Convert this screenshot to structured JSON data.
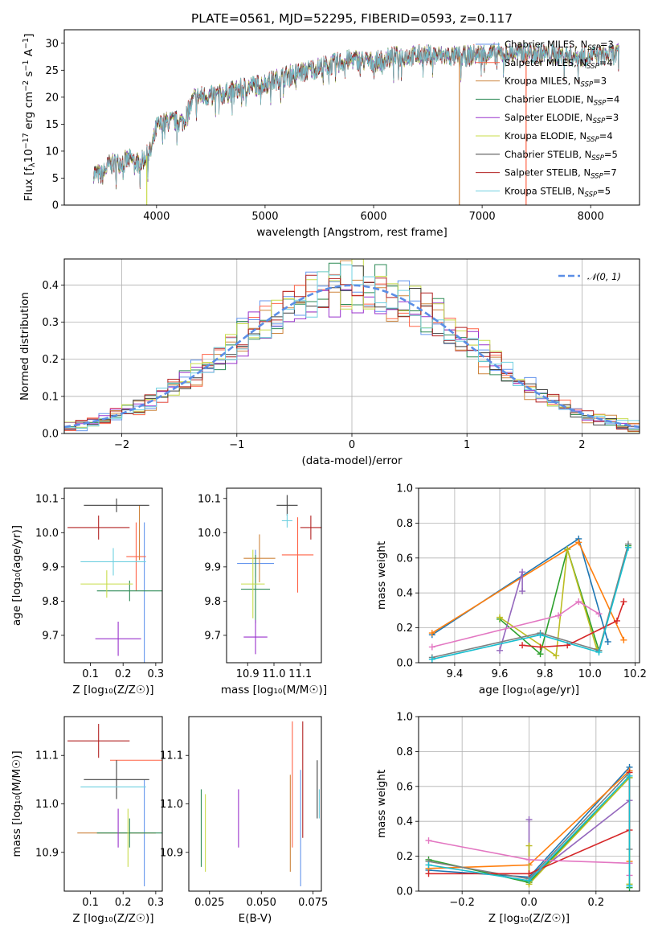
{
  "figure": {
    "title": "PLATE=0561, MJD=52295, FIBERID=0593, z=0.117"
  },
  "colors": {
    "c_MILES": "#6495ed",
    "s_MILES": "#ff6347",
    "k_MILES": "#cd853f",
    "c_ELODIE": "#2e8b57",
    "s_ELODIE": "#9932cc",
    "k_ELODIE": "#c8dc4a",
    "c_STELIB": "#404040",
    "s_STELIB": "#b22222",
    "k_STELIB": "#6fd0e0",
    "p1": "#1f77b4",
    "p2": "#ff7f0e",
    "p3": "#2ca02c",
    "p4": "#d62728",
    "p5": "#9467bd",
    "p6": "#8c564b",
    "p7": "#e377c2",
    "p8": "#7f7f7f",
    "p9": "#bcbd22",
    "p10": "#17becf"
  },
  "chart_data": [
    {
      "id": "spectrum",
      "type": "line",
      "title": "PLATE=0561, MJD=52295, FIBERID=0593, z=0.117",
      "xlabel": "wavelength [Angstrom, rest frame]",
      "ylabel_parts": [
        "Flux [f",
        "λ",
        "10",
        "−17",
        " erg cm",
        "−2",
        " s",
        "−1",
        " A",
        "−1",
        "]"
      ],
      "xlim": [
        3150,
        8450
      ],
      "ylim": [
        0,
        32.5
      ],
      "xticks": [
        4000,
        5000,
        6000,
        7000,
        8000
      ],
      "yticks": [
        0,
        5,
        10,
        15,
        20,
        25,
        30
      ],
      "x_range": [
        3420,
        8260
      ],
      "continuum": [
        [
          3420,
          6.0
        ],
        [
          3500,
          5.5
        ],
        [
          3560,
          7.5
        ],
        [
          3650,
          7.8
        ],
        [
          3750,
          8.5
        ],
        [
          3850,
          7.8
        ],
        [
          3950,
          10.0
        ],
        [
          4000,
          14.5
        ],
        [
          4100,
          15.5
        ],
        [
          4250,
          15.5
        ],
        [
          4350,
          20.0
        ],
        [
          4600,
          20.5
        ],
        [
          4850,
          22.0
        ],
        [
          5000,
          22.5
        ],
        [
          5200,
          24.0
        ],
        [
          5500,
          25.5
        ],
        [
          5800,
          27.0
        ],
        [
          6000,
          26.5
        ],
        [
          6200,
          27.5
        ],
        [
          6500,
          27.8
        ],
        [
          6800,
          27.5
        ],
        [
          7000,
          28.0
        ],
        [
          7300,
          28.2
        ],
        [
          7600,
          28.0
        ],
        [
          7900,
          27.5
        ],
        [
          8260,
          28.0
        ]
      ],
      "drops": [
        [
          3910,
          "k_ELODIE"
        ],
        [
          6790,
          "k_MILES"
        ],
        [
          7405,
          "s_MILES"
        ]
      ],
      "series": [
        {
          "key": "c_MILES",
          "label": "Chabrier MILES",
          "nssp": "3"
        },
        {
          "key": "s_MILES",
          "label": "Salpeter MILES",
          "nssp": "4"
        },
        {
          "key": "k_MILES",
          "label": "Kroupa MILES",
          "nssp": "3"
        },
        {
          "key": "c_ELODIE",
          "label": "Chabrier ELODIE",
          "nssp": "4"
        },
        {
          "key": "s_ELODIE",
          "label": "Salpeter ELODIE",
          "nssp": "3"
        },
        {
          "key": "k_ELODIE",
          "label": "Kroupa ELODIE",
          "nssp": "4"
        },
        {
          "key": "c_STELIB",
          "label": "Chabrier STELIB",
          "nssp": "5"
        },
        {
          "key": "s_STELIB",
          "label": "Salpeter STELIB",
          "nssp": "7"
        },
        {
          "key": "k_STELIB",
          "label": "Kroupa STELIB",
          "nssp": "5"
        }
      ]
    },
    {
      "id": "residuals",
      "type": "line",
      "xlabel": "(data-model)/error",
      "ylabel": "Normed distribution",
      "xlim": [
        -2.5,
        2.5
      ],
      "ylim": [
        0,
        0.47
      ],
      "xticks": [
        -2,
        -1,
        0,
        1,
        2
      ],
      "yticks": [
        0.0,
        0.1,
        0.2,
        0.3,
        0.4
      ],
      "grid": true,
      "legend": "𝒩(0, 1)",
      "legend_position": "upper right",
      "bin_width": 0.1
    },
    {
      "id": "age_vs_Z",
      "type": "scatter",
      "xlabel": "Z [log₁₀(Z/Z☉)]",
      "ylabel": "age  [log₁₀(age/yr)]",
      "xlim": [
        0.02,
        0.32
      ],
      "ylim": [
        9.62,
        10.13
      ],
      "xticks": [
        0.1,
        0.2,
        0.3
      ],
      "yticks": [
        9.7,
        9.8,
        9.9,
        10.0,
        10.1
      ],
      "points": [
        {
          "key": "c_MILES",
          "x": 0.265,
          "y": 9.78,
          "xe": 0.0,
          "ye": 0.25
        },
        {
          "key": "s_MILES",
          "x": 0.24,
          "y": 9.93,
          "xe": 0.03,
          "ye": 0.1
        },
        {
          "key": "k_MILES",
          "x": 0.25,
          "y": 10.0,
          "xe": 0.0,
          "ye": 0.08
        },
        {
          "key": "c_ELODIE",
          "x": 0.22,
          "y": 9.83,
          "xe": 0.1,
          "ye": 0.03
        },
        {
          "key": "s_ELODIE",
          "x": 0.185,
          "y": 9.69,
          "xe": 0.07,
          "ye": 0.05
        },
        {
          "key": "k_ELODIE",
          "x": 0.15,
          "y": 9.85,
          "xe": 0.08,
          "ye": 0.04
        },
        {
          "key": "c_STELIB",
          "x": 0.18,
          "y": 10.08,
          "xe": 0.1,
          "ye": 0.02
        },
        {
          "key": "s_STELIB",
          "x": 0.125,
          "y": 10.015,
          "xe": 0.095,
          "ye": 0.035
        },
        {
          "key": "k_STELIB",
          "x": 0.17,
          "y": 9.915,
          "xe": 0.1,
          "ye": 0.04
        }
      ]
    },
    {
      "id": "age_vs_mass",
      "type": "scatter",
      "xlabel": "mass [log₁₀(M/M☉)]",
      "ylabel": "",
      "xlim": [
        10.82,
        11.18
      ],
      "ylim": [
        9.62,
        10.13
      ],
      "xticks": [
        10.9,
        11.0,
        11.1
      ],
      "yticks": [
        9.7,
        9.8,
        9.9,
        10.0,
        10.1
      ],
      "points": [
        {
          "key": "c_MILES",
          "x": 10.93,
          "y": 9.91,
          "xe": 0.07,
          "ye": 0.04
        },
        {
          "key": "s_MILES",
          "x": 11.09,
          "y": 9.935,
          "xe": 0.06,
          "ye": 0.11
        },
        {
          "key": "k_MILES",
          "x": 10.945,
          "y": 9.925,
          "xe": 0.06,
          "ye": 0.07
        },
        {
          "key": "c_ELODIE",
          "x": 10.93,
          "y": 9.835,
          "xe": 0.055,
          "ye": 0.1
        },
        {
          "key": "s_ELODIE",
          "x": 10.93,
          "y": 9.695,
          "xe": 0.045,
          "ye": 0.05
        },
        {
          "key": "k_ELODIE",
          "x": 10.92,
          "y": 9.85,
          "xe": 0.045,
          "ye": 0.1
        },
        {
          "key": "c_STELIB",
          "x": 11.05,
          "y": 10.08,
          "xe": 0.04,
          "ye": 0.03
        },
        {
          "key": "s_STELIB",
          "x": 11.14,
          "y": 10.015,
          "xe": 0.04,
          "ye": 0.035
        },
        {
          "key": "k_STELIB",
          "x": 11.05,
          "y": 10.035,
          "xe": 0.02,
          "ye": 0.02
        }
      ]
    },
    {
      "id": "weight_vs_age",
      "type": "line",
      "xlabel": "age  [log₁₀(age/yr)]",
      "ylabel": "mass weight",
      "xlim": [
        9.24,
        10.22
      ],
      "ylim": [
        0,
        1
      ],
      "xticks": [
        9.4,
        9.6,
        9.8,
        10.0,
        10.2
      ],
      "yticks": [
        0.0,
        0.2,
        0.4,
        0.6,
        0.8,
        1.0
      ],
      "grid": true,
      "series": [
        {
          "key": "c_MILES",
          "color": "p1",
          "x": [
            9.3,
            9.95,
            10.08
          ],
          "y": [
            0.16,
            0.71,
            0.12
          ]
        },
        {
          "key": "k_MILES",
          "color": "p2",
          "x": [
            9.3,
            9.95,
            10.15
          ],
          "y": [
            0.17,
            0.69,
            0.13
          ]
        },
        {
          "key": "c_ELODIE",
          "color": "p3",
          "x": [
            9.6,
            9.78,
            9.9,
            10.04,
            10.17
          ],
          "y": [
            0.25,
            0.05,
            0.65,
            0.07,
            0.67
          ]
        },
        {
          "key": "s_ELODIE",
          "color": "p5",
          "x": [
            9.6,
            9.7,
            9.7
          ],
          "y": [
            0.07,
            0.52,
            0.41
          ]
        },
        {
          "key": "k_ELODIE",
          "color": "p9",
          "x": [
            9.6,
            9.85,
            9.9,
            10.03
          ],
          "y": [
            0.26,
            0.04,
            0.65,
            0.08
          ]
        },
        {
          "key": "c_STELIB",
          "color": "p8",
          "x": [
            9.3,
            9.78,
            10.04,
            10.17
          ],
          "y": [
            0.03,
            0.17,
            0.07,
            0.68
          ]
        },
        {
          "key": "s_STELIB",
          "color": "p4",
          "x": [
            9.7,
            9.78,
            9.9,
            10.12,
            10.15
          ],
          "y": [
            0.1,
            0.09,
            0.1,
            0.24,
            0.35
          ]
        },
        {
          "key": "s_MILES",
          "color": "p7",
          "x": [
            9.3,
            9.86,
            9.95,
            10.04
          ],
          "y": [
            0.09,
            0.27,
            0.35,
            0.28
          ]
        },
        {
          "key": "k_STELIB",
          "color": "p10",
          "x": [
            9.3,
            9.78,
            10.04,
            10.17
          ],
          "y": [
            0.02,
            0.16,
            0.06,
            0.66
          ]
        }
      ]
    },
    {
      "id": "mass_vs_Z",
      "type": "scatter",
      "xlabel": "Z [log₁₀(Z/Z☉)]",
      "ylabel": "mass [log₁₀(M/M☉)]",
      "xlim": [
        0.02,
        0.32
      ],
      "ylim": [
        10.82,
        11.18
      ],
      "xticks": [
        0.1,
        0.2,
        0.3
      ],
      "yticks": [
        10.9,
        11.0,
        11.1
      ],
      "points": [
        {
          "key": "c_MILES",
          "x": 0.265,
          "y": 10.94,
          "xe": 0.0,
          "ye": 0.11
        },
        {
          "key": "s_MILES",
          "x": 0.24,
          "y": 11.09,
          "xe": 0.08,
          "ye": 0.0
        },
        {
          "key": "k_MILES",
          "x": 0.18,
          "y": 10.94,
          "xe": 0.12,
          "ye": 0.0
        },
        {
          "key": "c_ELODIE",
          "x": 0.22,
          "y": 10.94,
          "xe": 0.1,
          "ye": 0.03
        },
        {
          "key": "s_ELODIE",
          "x": 0.185,
          "y": 10.95,
          "xe": 0.0,
          "ye": 0.04
        },
        {
          "key": "k_ELODIE",
          "x": 0.215,
          "y": 10.93,
          "xe": 0.0,
          "ye": 0.06
        },
        {
          "key": "c_STELIB",
          "x": 0.18,
          "y": 11.05,
          "xe": 0.1,
          "ye": 0.04
        },
        {
          "key": "s_STELIB",
          "x": 0.125,
          "y": 11.13,
          "xe": 0.095,
          "ye": 0.035
        },
        {
          "key": "k_STELIB",
          "x": 0.17,
          "y": 11.035,
          "xe": 0.1,
          "ye": 0.0
        }
      ]
    },
    {
      "id": "mass_vs_EBV",
      "type": "scatter",
      "xlabel": "E(B-V)",
      "ylabel": "",
      "xlim": [
        0.015,
        0.079
      ],
      "ylim": [
        10.82,
        11.18
      ],
      "xticks": [
        0.025,
        0.05,
        0.075
      ],
      "yticks": [
        10.9,
        11.0,
        11.1
      ],
      "points": [
        {
          "key": "c_MILES",
          "x": 0.069,
          "y": 10.95,
          "xe": 0.0,
          "ye": 0.12
        },
        {
          "key": "s_MILES",
          "x": 0.065,
          "y": 11.04,
          "xe": 0.0,
          "ye": 0.13
        },
        {
          "key": "k_MILES",
          "x": 0.064,
          "y": 10.96,
          "xe": 0.0,
          "ye": 0.1
        },
        {
          "key": "c_ELODIE",
          "x": 0.021,
          "y": 10.95,
          "xe": 0.0,
          "ye": 0.08
        },
        {
          "key": "s_ELODIE",
          "x": 0.039,
          "y": 10.97,
          "xe": 0.0,
          "ye": 0.06
        },
        {
          "key": "k_ELODIE",
          "x": 0.023,
          "y": 10.94,
          "xe": 0.0,
          "ye": 0.08
        },
        {
          "key": "c_STELIB",
          "x": 0.077,
          "y": 11.03,
          "xe": 0.0,
          "ye": 0.06
        },
        {
          "key": "s_STELIB",
          "x": 0.07,
          "y": 11.05,
          "xe": 0.0,
          "ye": 0.12
        },
        {
          "key": "k_STELIB",
          "x": 0.078,
          "y": 11.0,
          "xe": 0.0,
          "ye": 0.03
        }
      ]
    },
    {
      "id": "weight_vs_Z",
      "type": "line",
      "xlabel": "Z [log₁₀(Z/Z☉)]",
      "ylabel": "mass weight",
      "xlim": [
        -0.33,
        0.33
      ],
      "ylim": [
        0,
        1
      ],
      "xticks": [
        -0.2,
        0.0,
        0.2
      ],
      "yticks": [
        0.0,
        0.2,
        0.4,
        0.6,
        0.8,
        1.0
      ],
      "grid": true,
      "series": [
        {
          "key": "c_MILES",
          "color": "p1",
          "x": [
            -0.3,
            0.0,
            0.3,
            0.3
          ],
          "y": [
            0.12,
            0.08,
            0.71,
            0.16
          ]
        },
        {
          "key": "k_MILES",
          "color": "p2",
          "x": [
            -0.3,
            0.0,
            0.3,
            0.3
          ],
          "y": [
            0.13,
            0.15,
            0.69,
            0.17
          ]
        },
        {
          "key": "c_ELODIE",
          "color": "p3",
          "x": [
            -0.3,
            0.0,
            0.3,
            0.3
          ],
          "y": [
            0.18,
            0.05,
            0.65,
            0.02
          ]
        },
        {
          "key": "s_ELODIE",
          "color": "p5",
          "x": [
            0.0,
            0.0,
            0.3
          ],
          "y": [
            0.41,
            0.07,
            0.52
          ]
        },
        {
          "key": "k_ELODIE",
          "color": "p9",
          "x": [
            0.0,
            0.0,
            0.3,
            0.3
          ],
          "y": [
            0.26,
            0.04,
            0.65,
            0.04
          ]
        },
        {
          "key": "c_STELIB",
          "color": "p8",
          "x": [
            -0.3,
            0.0,
            0.3,
            0.3
          ],
          "y": [
            0.17,
            0.07,
            0.68,
            0.24
          ]
        },
        {
          "key": "s_STELIB",
          "color": "p4",
          "x": [
            -0.3,
            0.0,
            0.3,
            0.3
          ],
          "y": [
            0.1,
            0.1,
            0.35,
            0.68
          ]
        },
        {
          "key": "s_MILES",
          "color": "p7",
          "x": [
            -0.3,
            0.0,
            0.3,
            0.3
          ],
          "y": [
            0.29,
            0.18,
            0.16,
            0.09
          ]
        },
        {
          "key": "k_STELIB",
          "color": "p10",
          "x": [
            -0.3,
            0.0,
            0.3,
            0.3
          ],
          "y": [
            0.15,
            0.06,
            0.66,
            0.03
          ]
        }
      ]
    }
  ]
}
